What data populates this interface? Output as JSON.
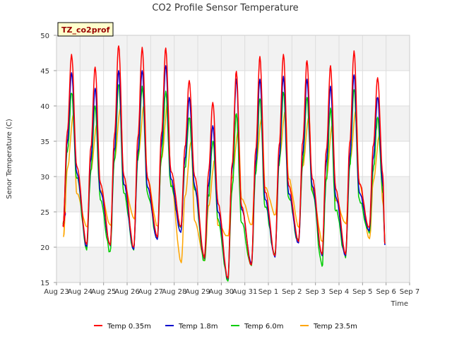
{
  "chart_data": {
    "type": "line",
    "title": "CO2 Profile Sensor Temperature",
    "xlabel": "Time",
    "ylabel": "Senor Temperature (C)",
    "site_label": "TZ_co2prof",
    "ylim": [
      15,
      50
    ],
    "yticks": [
      15,
      20,
      25,
      30,
      35,
      40,
      45,
      50
    ],
    "xlim": [
      "Aug 23",
      "Sep 7"
    ],
    "xticks": [
      "Aug 23",
      "Aug 24",
      "Aug 25",
      "Aug 26",
      "Aug 27",
      "Aug 28",
      "Aug 29",
      "Aug 30",
      "Aug 31",
      "Sep 1",
      "Sep 2",
      "Sep 3",
      "Sep 4",
      "Sep 5",
      "Sep 6",
      "Sep 7"
    ],
    "grid": true,
    "bands": "alternating light gray",
    "legend_position": "bottom",
    "series": [
      {
        "name": "Temp 0.35m",
        "color": "#ff0000",
        "daily_max": [
          47.3,
          45.5,
          48.5,
          48.3,
          48.2,
          43.6,
          40.5,
          44.9,
          47.0,
          47.3,
          46.4,
          45.7,
          47.8,
          44.0
        ],
        "daily_min": [
          23.0,
          20.4,
          20.3,
          20.0,
          21.4,
          22.9,
          18.5,
          15.6,
          17.5,
          18.8,
          20.8,
          19.0,
          19.0,
          22.8
        ],
        "start": 25.0,
        "end": 20.5
      },
      {
        "name": "Temp 1.8m",
        "color": "#0000cc",
        "daily_max": [
          44.7,
          42.5,
          45.0,
          45.0,
          45.7,
          41.2,
          37.2,
          43.8,
          43.8,
          44.2,
          43.8,
          42.8,
          44.4,
          41.2
        ],
        "daily_min": [
          23.0,
          20.1,
          20.2,
          19.7,
          21.1,
          22.1,
          18.4,
          15.5,
          17.6,
          18.6,
          20.6,
          18.8,
          18.8,
          22.3
        ],
        "start": 24.8,
        "end": 20.3
      },
      {
        "name": "Temp 6.0m",
        "color": "#00cc00",
        "daily_max": [
          41.8,
          40.0,
          43.0,
          42.8,
          42.1,
          38.3,
          35.0,
          38.9,
          41.0,
          41.9,
          41.2,
          39.7,
          42.3,
          38.4
        ],
        "daily_min": [
          23.3,
          19.6,
          19.4,
          19.6,
          21.3,
          22.8,
          18.1,
          15.2,
          17.4,
          19.0,
          20.8,
          17.3,
          18.5,
          22.0
        ],
        "start": 25.0,
        "end": 20.6
      },
      {
        "name": "Temp 23.5m",
        "color": "#ffa500",
        "daily_max": [
          38.9,
          37.5,
          39.8,
          40.0,
          40.4,
          35.0,
          32.3,
          36.6,
          38.2,
          39.2,
          38.6,
          37.3,
          39.4,
          36.0
        ],
        "daily_min": [
          21.5,
          22.9,
          23.1,
          24.0,
          23.0,
          17.8,
          18.1,
          21.6,
          23.2,
          24.6,
          22.8,
          20.8,
          23.3,
          21.2
        ],
        "start": 26.5,
        "end": 21.5
      }
    ]
  }
}
